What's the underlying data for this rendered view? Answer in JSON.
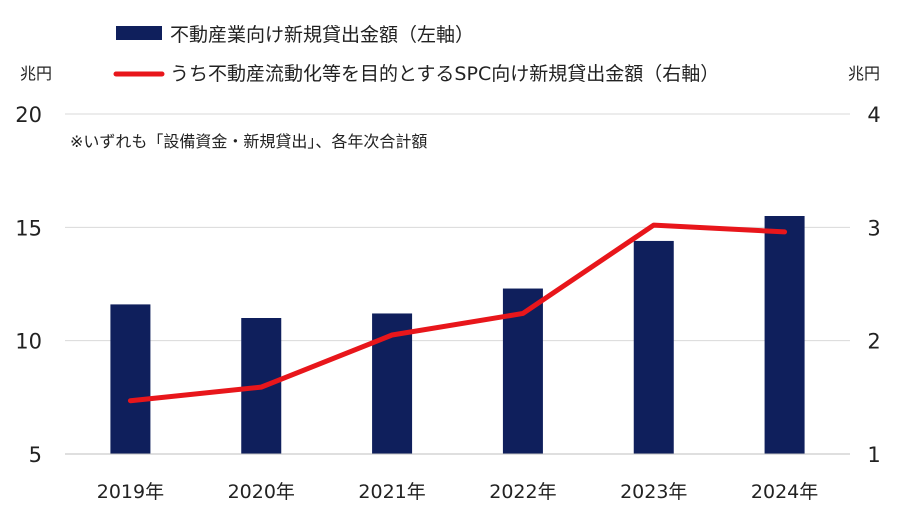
{
  "chart_data": {
    "type": "bar+line",
    "categories": [
      "2019年",
      "2020年",
      "2021年",
      "2022年",
      "2023年",
      "2024年"
    ],
    "series": [
      {
        "name": "不動産業向け新規貸出金額（左軸）",
        "type": "bar",
        "axis": "left",
        "color": "#0f1f5c",
        "values": [
          11.6,
          11.0,
          11.2,
          12.3,
          14.4,
          15.5
        ]
      },
      {
        "name": "うち不動産流動化等を目的とするSPC向け新規貸出金額（右軸）",
        "type": "line",
        "axis": "right",
        "color": "#e8161b",
        "values": [
          1.47,
          1.59,
          2.05,
          2.24,
          3.02,
          2.96
        ]
      }
    ],
    "y_left": {
      "unit": "兆円",
      "ylim": [
        5,
        20
      ],
      "ticks": [
        "5",
        "10",
        "15",
        "20"
      ]
    },
    "y_right": {
      "unit": "兆円",
      "ylim": [
        1,
        4
      ],
      "ticks": [
        "1",
        "2",
        "3",
        "4"
      ]
    },
    "note": "※いずれも「設備資金・新規貸出」、各年次合計額",
    "grid": "horizontal",
    "legend_position": "top"
  }
}
